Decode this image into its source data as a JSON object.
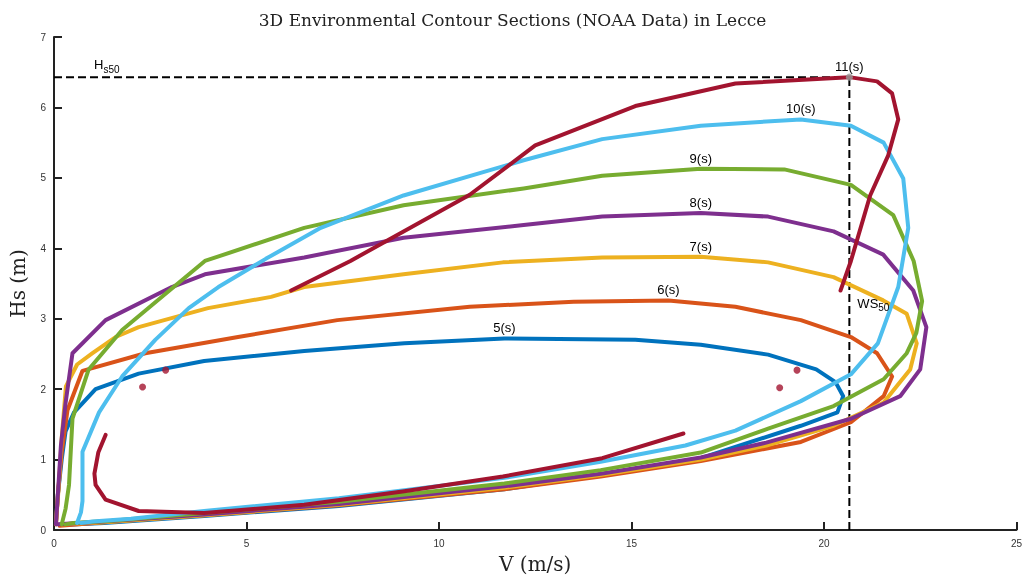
{
  "chart_data": {
    "type": "line",
    "title": "3D Environmental Contour Sections (NOAA Data) in Lecce",
    "xlabel": "V (m/s)",
    "ylabel": "Hs (m)",
    "xlim": [
      0,
      25
    ],
    "ylim": [
      0,
      7
    ],
    "xticks": [
      0,
      5,
      10,
      15,
      20,
      25
    ],
    "yticks": [
      0,
      1,
      2,
      3,
      4,
      5,
      6,
      7
    ],
    "marker": "none",
    "line_style": "solid",
    "series": [
      {
        "name": "5(s)",
        "color": "#0072bd",
        "x": [
          0.05,
          0.1,
          0.2,
          0.3,
          0.52,
          1.08,
          2.2,
          3.9,
          6.5,
          9.1,
          11.7,
          15.1,
          16.8,
          18.55,
          19.8,
          20.3,
          20.5,
          20.35,
          19.4,
          16.8,
          14.2,
          11.7,
          7.4,
          3.9,
          1.3,
          0.15
        ],
        "values": [
          0.1,
          0.5,
          1.0,
          1.4,
          1.67,
          2.0,
          2.22,
          2.4,
          2.54,
          2.65,
          2.72,
          2.7,
          2.63,
          2.49,
          2.28,
          2.1,
          1.9,
          1.67,
          1.48,
          1.02,
          0.78,
          0.58,
          0.34,
          0.2,
          0.1,
          0.07
        ]
      },
      {
        "name": "6(s)",
        "color": "#d95319",
        "x": [
          0.05,
          0.1,
          0.2,
          0.35,
          0.74,
          2.37,
          4.78,
          7.36,
          10.8,
          13.5,
          15.96,
          17.7,
          19.4,
          20.7,
          21.38,
          21.77,
          21.55,
          20.7,
          19.4,
          16.8,
          14.2,
          11.7,
          7.4,
          3.9,
          1.3,
          0.15
        ],
        "values": [
          0.08,
          0.5,
          1.1,
          1.7,
          2.26,
          2.51,
          2.74,
          2.98,
          3.17,
          3.24,
          3.26,
          3.17,
          2.98,
          2.74,
          2.51,
          2.18,
          1.9,
          1.53,
          1.25,
          0.98,
          0.76,
          0.58,
          0.35,
          0.21,
          0.11,
          0.06
        ]
      },
      {
        "name": "7(s)",
        "color": "#edb120",
        "x": [
          0.05,
          0.12,
          0.2,
          0.31,
          0.6,
          1.0,
          1.6,
          2.2,
          4.0,
          5.64,
          6.5,
          9.08,
          11.66,
          14.24,
          16.8,
          18.55,
          20.25,
          21.54,
          22.15,
          22.41,
          22.24,
          21.55,
          20.25,
          18.5,
          16.8,
          14.2,
          11.7,
          7.4,
          3.9,
          1.3,
          0.2
        ],
        "values": [
          0.08,
          0.6,
          1.3,
          2.04,
          2.35,
          2.51,
          2.74,
          2.88,
          3.15,
          3.31,
          3.45,
          3.63,
          3.8,
          3.87,
          3.88,
          3.8,
          3.59,
          3.26,
          3.07,
          2.65,
          2.28,
          1.81,
          1.48,
          1.2,
          1.0,
          0.78,
          0.6,
          0.36,
          0.21,
          0.11,
          0.08
        ]
      },
      {
        "name": "8(s)",
        "color": "#7e2f8e",
        "x": [
          0.05,
          0.1,
          0.18,
          0.3,
          0.48,
          1.34,
          3.06,
          3.92,
          6.5,
          9.08,
          12.2,
          14.24,
          16.8,
          18.55,
          20.25,
          21.54,
          22.32,
          22.66,
          22.5,
          21.98,
          20.7,
          18.5,
          16.8,
          14.2,
          11.7,
          7.4,
          3.9,
          1.3,
          0.1
        ],
        "values": [
          0.08,
          0.5,
          1.2,
          1.8,
          2.51,
          2.98,
          3.45,
          3.63,
          3.87,
          4.15,
          4.33,
          4.45,
          4.5,
          4.45,
          4.24,
          3.91,
          3.4,
          2.88,
          2.28,
          1.9,
          1.58,
          1.24,
          1.03,
          0.8,
          0.62,
          0.37,
          0.22,
          0.12,
          0.08
        ]
      },
      {
        "name": "9(s)",
        "color": "#77ac30",
        "x": [
          0.2,
          0.3,
          0.39,
          0.48,
          0.9,
          1.77,
          2.89,
          3.92,
          6.5,
          9.08,
          12.2,
          14.24,
          16.8,
          18.97,
          20.7,
          21.8,
          22.33,
          22.55,
          22.4,
          22.15,
          21.55,
          20.25,
          18.55,
          16.8,
          14.2,
          11.7,
          7.4,
          3.9,
          1.5,
          0.5,
          0.3
        ],
        "values": [
          0.08,
          0.3,
          0.64,
          1.58,
          2.28,
          2.84,
          3.35,
          3.82,
          4.29,
          4.61,
          4.85,
          5.03,
          5.13,
          5.12,
          4.9,
          4.47,
          3.82,
          3.25,
          2.8,
          2.51,
          2.14,
          1.76,
          1.44,
          1.1,
          0.85,
          0.66,
          0.4,
          0.24,
          0.13,
          0.1,
          0.08
        ]
      },
      {
        "name": "10(s)",
        "color": "#4dbeee",
        "x": [
          0.6,
          0.7,
          0.74,
          0.74,
          1.17,
          1.77,
          2.63,
          3.5,
          4.27,
          5.5,
          6.93,
          9.08,
          12.2,
          14.24,
          16.8,
          19.4,
          20.7,
          21.55,
          22.06,
          22.19,
          21.93,
          21.4,
          20.7,
          19.4,
          17.7,
          16.4,
          14.2,
          11.7,
          7.4,
          3.9,
          2.0,
          1.0,
          0.7
        ],
        "values": [
          0.1,
          0.25,
          0.41,
          1.11,
          1.67,
          2.18,
          2.7,
          3.15,
          3.45,
          3.85,
          4.29,
          4.75,
          5.25,
          5.55,
          5.74,
          5.83,
          5.74,
          5.5,
          4.99,
          4.29,
          3.45,
          2.65,
          2.21,
          1.83,
          1.41,
          1.2,
          0.97,
          0.74,
          0.45,
          0.27,
          0.16,
          0.12,
          0.1
        ]
      },
      {
        "name": "11(s)",
        "color": "#a2142f",
        "x": [
          1.34,
          1.15,
          1.05,
          1.08,
          1.34,
          2.2,
          3.9,
          6.5,
          9.1,
          11.66,
          14.24,
          16.35,
          null,
          20.43,
          20.7,
          21.2,
          21.67,
          21.93,
          21.77,
          21.38,
          20.66,
          17.7,
          15.1,
          12.5,
          10.8,
          9.08,
          7.7,
          6.16
        ],
        "values": [
          1.35,
          1.1,
          0.8,
          0.64,
          0.43,
          0.27,
          0.24,
          0.36,
          0.55,
          0.76,
          1.02,
          1.37,
          null,
          3.4,
          3.82,
          4.75,
          5.32,
          5.83,
          6.2,
          6.37,
          6.43,
          6.34,
          6.02,
          5.46,
          4.76,
          4.24,
          3.82,
          3.4
        ]
      },
      {
        "type": "scatter",
        "marker": "circle",
        "color": "#a2142f",
        "x": [
          2.3,
          2.9,
          18.85,
          19.3
        ],
        "values": [
          2.03,
          2.27,
          2.02,
          2.27
        ]
      },
      {
        "type": "scatter",
        "marker": "circle",
        "color": "#999999",
        "x": [
          20.66
        ],
        "values": [
          6.43
        ]
      }
    ],
    "ref_lines": [
      {
        "axis": "y",
        "value": 6.43,
        "label": "H$_{s50}$",
        "color": "#000000",
        "line_style": "dashed"
      },
      {
        "axis": "x",
        "value": 20.66,
        "label": "WS$_{50}$",
        "color": "#000000",
        "line_style": "dashed"
      }
    ]
  }
}
